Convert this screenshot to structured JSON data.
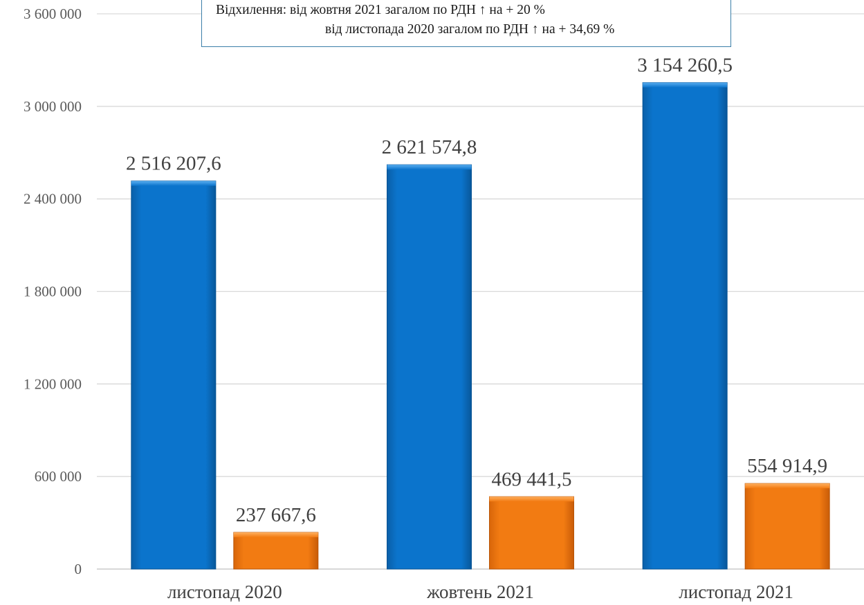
{
  "chart_data": {
    "type": "bar",
    "categories": [
      "листопад 2020",
      "жовтень 2021",
      "листопад 2021"
    ],
    "series": [
      {
        "values": [
          2516207.6,
          2621574.8,
          3154260.5
        ],
        "labels": [
          "2 516 207,6",
          "2 621 574,8",
          "3 154 260,5"
        ],
        "color": "#0a72c8"
      },
      {
        "values": [
          237667.6,
          469441.5,
          554914.9
        ],
        "labels": [
          "237 667,6",
          "469 441,5",
          "554 914,9"
        ],
        "color": "#f07a10"
      }
    ],
    "ylim": [
      0,
      3600000
    ],
    "yticks": [
      0,
      600000,
      1200000,
      1800000,
      2400000,
      3000000,
      3600000
    ],
    "ytick_labels": [
      "0",
      "600 000",
      "1 200 000",
      "1 800 000",
      "2 400 000",
      "3 000 000",
      "3 600 000"
    ],
    "grid": true,
    "annotation": {
      "line1": "Відхилення: від жовтня 2021 загалом по РДН ↑ на + 20 %",
      "line2": "від листопада 2020 загалом по РДН ↑ на + 34,69 %"
    }
  }
}
